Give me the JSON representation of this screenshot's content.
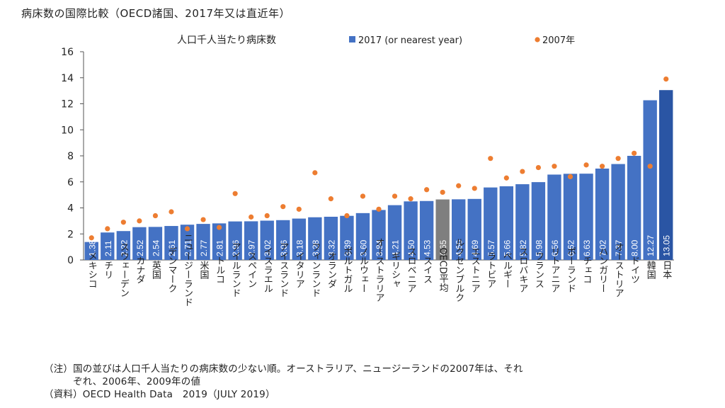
{
  "title": "病床数の国際比較（OECD諸国、2017年又は直近年）",
  "chart_data": {
    "type": "bar",
    "title": "人口千人当たり病床数",
    "ylim": [
      0,
      16
    ],
    "yticks": [
      0,
      2,
      4,
      6,
      8,
      10,
      12,
      14,
      16
    ],
    "grid": false,
    "legend_position": "top",
    "categories": [
      "メキシコ",
      "チリ",
      "スウェーデン",
      "カナダ",
      "英国",
      "デンマーク",
      "ニュージーランド",
      "米国",
      "トルコ",
      "アイルランド",
      "スペイン",
      "イスラエル",
      "アイスランド",
      "イタリア",
      "フィンランド",
      "オランダ",
      "ポルトガル",
      "ノルウェー",
      "オーストラリア",
      "ギリシャ",
      "スロベニア",
      "スイス",
      "OECD平均",
      "ルクセンブルク",
      "エストニア",
      "ラトビア",
      "ベルギー",
      "スロバキア",
      "フランス",
      "リトアニア",
      "ポーランド",
      "チェコ",
      "ハンガリー",
      "オーストリア",
      "ドイツ",
      "韓国",
      "日本"
    ],
    "series": [
      {
        "name": "2017 (or nearest year)",
        "values": [
          1.38,
          2.11,
          2.22,
          2.52,
          2.54,
          2.61,
          2.71,
          2.77,
          2.81,
          2.96,
          2.97,
          3.02,
          3.06,
          3.18,
          3.28,
          3.32,
          3.39,
          3.6,
          3.84,
          4.21,
          4.5,
          4.53,
          4.65,
          4.66,
          4.69,
          5.57,
          5.66,
          5.82,
          5.98,
          6.56,
          6.62,
          6.63,
          7.02,
          7.37,
          8.0,
          12.27,
          13.05
        ]
      },
      {
        "name": "2007年",
        "values": [
          1.7,
          2.4,
          2.9,
          3.0,
          3.4,
          3.7,
          2.4,
          3.1,
          2.5,
          5.1,
          3.3,
          3.4,
          4.1,
          3.9,
          6.7,
          4.7,
          3.4,
          4.9,
          3.9,
          4.9,
          4.7,
          5.4,
          5.2,
          5.7,
          5.5,
          7.8,
          6.3,
          6.8,
          7.1,
          7.2,
          6.4,
          7.3,
          7.2,
          7.8,
          8.2,
          7.2,
          13.9
        ]
      }
    ],
    "label_texts": [
      "1.38",
      "2.11",
      "2.22",
      "2.52",
      "2.54",
      "2.61",
      "2.71",
      "2.77",
      "2.81",
      "2.96",
      "2.97",
      "3.02",
      "3.06",
      "3.18",
      "3.28",
      "3.32",
      "3.39",
      "3.60",
      "3.84",
      "4.21",
      "4.50",
      "4.53",
      "4.65",
      "4.66",
      "4.69",
      "5.57",
      "5.66",
      "5.82",
      "5.98",
      "6.56",
      "6.62",
      "6.63",
      "7.02",
      "7.37",
      "8.00",
      "12.27",
      "13.05"
    ],
    "highlight": {
      "OECD平均": "#7f7f7f",
      "日本": "#2a55a4",
      "韓国": "#4472c4"
    }
  },
  "colors": {
    "bar": "#4472c4",
    "oecd_bar": "#7f7f7f",
    "japan_bar": "#2a55a4",
    "dot": "#ed7d31",
    "axis": "#555555"
  },
  "notes": {
    "note1": "（注）国の並びは人口千人当たりの病床数の少ない順。オーストラリア、ニュージーランドの2007年は、それ",
    "note2": "　　　ぞれ、2006年、2009年の値",
    "source": "（資料）OECD Health Data　2019（JULY 2019）"
  }
}
